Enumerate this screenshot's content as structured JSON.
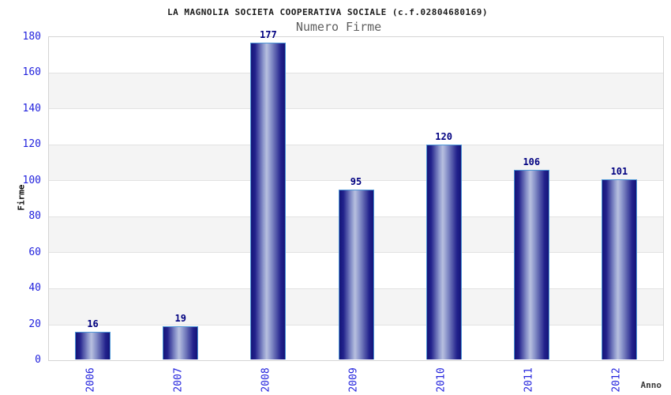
{
  "header": {
    "title": "LA MAGNOLIA SOCIETA COOPERATIVA SOCIALE (c.f.02804680169)",
    "subtitle": "Numero Firme"
  },
  "chart_data": {
    "type": "bar",
    "title": "Numero Firme",
    "categories": [
      "2006",
      "2007",
      "2008",
      "2009",
      "2010",
      "2011",
      "2012"
    ],
    "values": [
      16,
      19,
      177,
      95,
      120,
      106,
      101
    ],
    "xlabel": "Anno",
    "ylabel": "Firme",
    "ylim": [
      0,
      180
    ],
    "ytick_step": 20,
    "ytick_labels": [
      "0",
      "20",
      "40",
      "60",
      "80",
      "100",
      "120",
      "140",
      "160",
      "180"
    ],
    "grid": "horizontal-bands-alternating",
    "legend": "none",
    "bar_value_labels_shown": true,
    "x_tick_rotation_deg": -90
  },
  "colors": {
    "tick_label_blue": "#2323dd",
    "value_label_navy": "#000080",
    "bar_edge_navy": "#141478",
    "bar_center_light": "#b8c0df",
    "bar_border_lightblue": "#4d96d6",
    "band_gray": "#f4f4f4",
    "band_white": "#ffffff",
    "plot_border_gray": "#d4d4d4",
    "gridline_gray": "#e2e2e2",
    "title_black": "#1a1a1a",
    "subtitle_gray": "#5e5e5e",
    "axis_title_dark": "#3a3a3a"
  }
}
